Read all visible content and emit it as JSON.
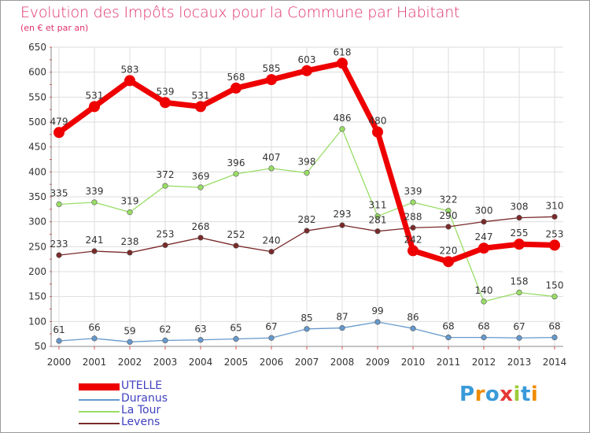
{
  "chart_data": {
    "type": "line",
    "title": "Evolution des Impôts locaux pour la Commune par Habitant",
    "subtitle": "(en € et par an)",
    "x": [
      "2000",
      "2001",
      "2002",
      "2003",
      "2004",
      "2005",
      "2006",
      "2007",
      "2008",
      "2009",
      "2010",
      "2011",
      "2012",
      "2013",
      "2014"
    ],
    "ylim": [
      50,
      650
    ],
    "yticks": [
      50,
      100,
      150,
      200,
      250,
      300,
      350,
      400,
      450,
      500,
      550,
      600,
      650
    ],
    "grid": true,
    "series": [
      {
        "name": "UTELLE",
        "color": "#ee0000",
        "values": [
          479,
          531,
          583,
          539,
          531,
          568,
          585,
          603,
          618,
          480,
          242,
          220,
          247,
          255,
          253
        ]
      },
      {
        "name": "Duranus",
        "color": "#6699cc",
        "values": [
          61,
          66,
          59,
          62,
          63,
          65,
          67,
          85,
          87,
          99,
          86,
          68,
          68,
          67,
          68
        ]
      },
      {
        "name": "La Tour",
        "color": "#99dd66",
        "values": [
          335,
          339,
          319,
          372,
          369,
          396,
          407,
          398,
          486,
          311,
          339,
          322,
          140,
          158,
          150
        ]
      },
      {
        "name": "Levens",
        "color": "#7a2a2a",
        "values": [
          233,
          241,
          238,
          253,
          268,
          252,
          240,
          282,
          293,
          281,
          288,
          290,
          300,
          308,
          310
        ]
      }
    ]
  },
  "logo": {
    "text": "Proxiti",
    "letters": [
      "P",
      "r",
      "o",
      "x",
      "i",
      "t",
      "i"
    ],
    "colors": [
      "#3a9ad9",
      "#f08c00",
      "#3a9ad9",
      "#e53935",
      "#9ccc3a",
      "#3a9ad9",
      "#f08c00"
    ]
  }
}
